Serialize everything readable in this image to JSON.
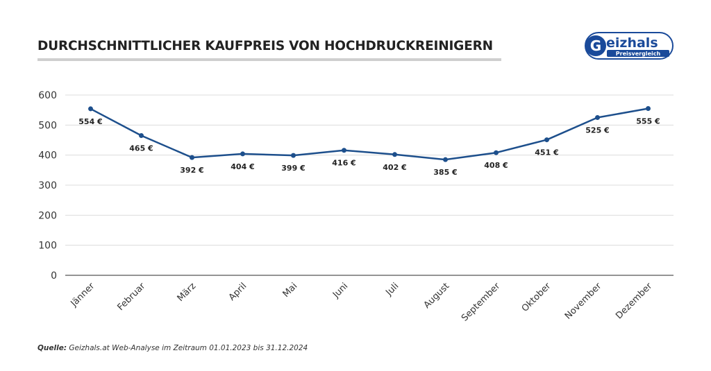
{
  "colors": {
    "line": "#1d4f8c",
    "grid": "#dcdcdc",
    "text": "#222222",
    "logo": "#1a4a9a"
  },
  "logo": {
    "name": "Geizhals",
    "sub": "Preisvergleich"
  },
  "footer": {
    "label": "Quelle:",
    "text": "Geizhals.at Web-Analyse im Zeitraum 01.01.2023 bis 31.12.2024"
  },
  "chart_data": {
    "type": "line",
    "title": "DURCHSCHNITTLICHER KAUFPREIS VON HOCHDRUCKREINIGERN",
    "categories": [
      "Jänner",
      "Februar",
      "März",
      "April",
      "Mai",
      "Juni",
      "Juli",
      "August",
      "September",
      "Oktober",
      "November",
      "Dezember"
    ],
    "values": [
      554,
      465,
      392,
      404,
      399,
      416,
      402,
      385,
      408,
      451,
      525,
      555
    ],
    "data_labels": [
      "554 €",
      "465 €",
      "392 €",
      "404 €",
      "399 €",
      "416 €",
      "402 €",
      "385 €",
      "408 €",
      "451 €",
      "525 €",
      "555 €"
    ],
    "yticks": [
      0,
      100,
      200,
      300,
      400,
      500,
      600
    ],
    "ylim": [
      0,
      600
    ],
    "xlabel": "",
    "ylabel": "",
    "grid": true,
    "legend": "none"
  }
}
